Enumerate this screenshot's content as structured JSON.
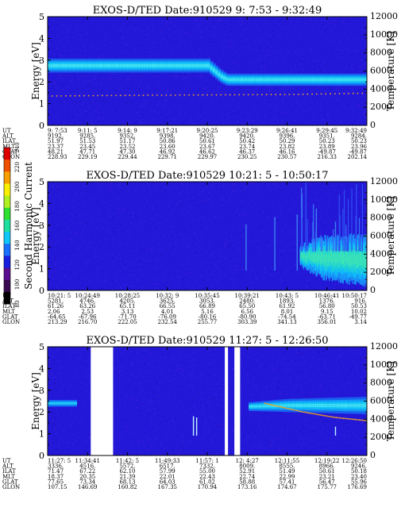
{
  "panels": [
    {
      "title": "EXOS-D/TED   Date:910529  9: 7:53 - 9:32:49",
      "ylabel_left": "Energy [eV]",
      "ylabel_right": "Temperature [K]",
      "y_ticks": [
        "0",
        "1",
        "2",
        "3",
        "4",
        "5"
      ],
      "t_ticks": [
        "0",
        "2000",
        "4000",
        "6000",
        "8000",
        "10000",
        "12000"
      ],
      "row_labels": [
        "UT",
        "ALT",
        "ILAT",
        "MLT",
        "GLAT",
        "GLON"
      ],
      "columns": [
        [
          "9: 7:53",
          "9192.",
          "51.97",
          "23.37",
          "48.21",
          "228.93"
        ],
        [
          "9:11: 5",
          "9285.",
          "51.53",
          "23.45",
          "47.71",
          "229.19"
        ],
        [
          "9:14: 9",
          "9352.",
          "51.17",
          "23.52",
          "47.30",
          "229.44"
        ],
        [
          "9:17:21",
          "9398.",
          "50.86",
          "23.60",
          "46.92",
          "229.71"
        ],
        [
          "9:20:25",
          "9420.",
          "50.61",
          "23.67",
          "46.62",
          "229.97"
        ],
        [
          "9:23:29",
          "9420.",
          "50.42",
          "23.74",
          "46.37",
          "230.25"
        ],
        [
          "9:26:41",
          "9396.",
          "50.29",
          "23.82",
          "46.16",
          "230.57"
        ],
        [
          "9:29:45",
          "9351.",
          "50.23",
          "23.89",
          "-49.87",
          "216.33"
        ],
        [
          "9:32:49",
          "9284.",
          "50.23",
          "23.96",
          "-49.87",
          "202.14"
        ]
      ],
      "chart_data": {
        "type": "heatmap",
        "x": [
          "9: 7:53",
          "9:11: 5",
          "9:14: 9",
          "9:17:21",
          "9:20:25",
          "9:23:29",
          "9:26:41",
          "9:29:45",
          "9:32:49"
        ],
        "ylim": [
          0,
          5
        ],
        "y2lim": [
          0,
          12000
        ],
        "series": [
          {
            "name": "",
            "kind": "band",
            "x": [
              0,
              0.5,
              0.54,
              0.56,
              1
            ],
            "y": [
              2.75,
              2.75,
              2.25,
              2.1,
              2.1
            ],
            "width": [
              0.32,
              0.32,
              0.3,
              0.28,
              0.28
            ]
          },
          {
            "name": "",
            "kind": "dots",
            "x": [
              0,
              0.25,
              0.5,
              0.75,
              1
            ],
            "y": [
              1.35,
              1.38,
              1.4,
              1.42,
              1.48
            ]
          }
        ],
        "gaps": [],
        "streaks": []
      }
    },
    {
      "title": "EXOS-D/TED   Date:910529  10:21: 5 - 10:50:17",
      "ylabel_left": "Energy [eV]",
      "ylabel_right": "Temperature [K]",
      "y_ticks": [
        "0",
        "1",
        "2",
        "3",
        "4",
        "5"
      ],
      "t_ticks": [
        "0",
        "2000",
        "4000",
        "6000",
        "8000",
        "10000",
        "12000"
      ],
      "row_labels": [
        "UT",
        "ALT",
        "ILAT",
        "MLT",
        "GLAT",
        "GLON"
      ],
      "columns": [
        [
          "10:21: 5",
          "5281.",
          "61.26",
          "2.06",
          "-64.65",
          "213.29"
        ],
        [
          "10:24:49",
          "4746.",
          "63.26",
          "2.53",
          "-67.96",
          "216.70"
        ],
        [
          "10:28:25",
          "4205.",
          "65.11",
          "3.13",
          "-71.70",
          "222.05"
        ],
        [
          "10:32: 9",
          "3625.",
          "66.55",
          "4.01",
          "-76.09",
          "232.54"
        ],
        [
          "10:35:45",
          "3053.",
          "66.89",
          "5.16",
          "-80.16",
          "255.77"
        ],
        [
          "10:39:21",
          "2480.",
          "65.50",
          "6.56",
          "-80.90",
          "303.39"
        ],
        [
          "10:43: 5",
          "1893.",
          "61.92",
          "8.01",
          "-74.54",
          "341.13"
        ],
        [
          "10:46:41",
          "1376.",
          "56.80",
          "9.15",
          "-63.71",
          "356.01"
        ],
        [
          "10:50:17",
          "916.",
          "50.53",
          "10.02",
          "-49.77",
          "3.14"
        ]
      ],
      "colorbar": {
        "label": "Second Harmonic Current",
        "ticks": [
          "80",
          "100",
          "120",
          "140",
          "160",
          "180",
          "200",
          "220",
          "240"
        ],
        "colors": [
          "#000000",
          "#3a0a50",
          "#5a1090",
          "#1a20e0",
          "#1a70ff",
          "#10c8f8",
          "#20e0a0",
          "#30e030",
          "#b0f020",
          "#f8f000",
          "#f8a000",
          "#f05000",
          "#e00000"
        ]
      },
      "chart_data": {
        "type": "heatmap",
        "x": [
          "10:21: 5",
          "10:24:49",
          "10:28:25",
          "10:32: 9",
          "10:35:45",
          "10:39:21",
          "10:43: 5",
          "10:46:41",
          "10:50:17"
        ],
        "ylim": [
          0,
          5
        ],
        "y2lim": [
          0,
          12000
        ],
        "series": [
          {
            "name": "",
            "kind": "blob",
            "x": [
              0.79,
              0.86,
              1
            ],
            "y": [
              1.6,
              1.5,
              1.4
            ],
            "width": [
              0.4,
              0.9,
              1.1
            ]
          }
        ],
        "gaps": [],
        "streaks": [
          0.62,
          0.71,
          0.78,
          0.84,
          0.9,
          0.95
        ]
      }
    },
    {
      "title": "EXOS-D/TED   Date:910529  11:27: 5 - 12:26:50",
      "ylabel_left": "Energy [eV]",
      "ylabel_right": "Temperature [K]",
      "y_ticks": [
        "0",
        "1",
        "2",
        "3",
        "4",
        "5"
      ],
      "t_ticks": [
        "0",
        "2000",
        "4000",
        "6000",
        "8000",
        "10000",
        "12000"
      ],
      "row_labels": [
        "UT",
        "ALT",
        "ILAT",
        "MLT",
        "GLAT",
        "GLON"
      ],
      "columns": [
        [
          "11:27: 5",
          "3336.",
          "71.47",
          "18.37",
          "77.65",
          "107.15"
        ],
        [
          "11:34:41",
          "4516.",
          "67.22",
          "20.35",
          "73.34",
          "146.69"
        ],
        [
          "11:42: 5",
          "5572.",
          "62.10",
          "21.39",
          "68.13",
          "160.82"
        ],
        [
          "11:49:33",
          "6517.",
          "57.99",
          "22.01",
          "64.03",
          "167.35"
        ],
        [
          "11:57: 1",
          "7332.",
          "55.00",
          "22.43",
          "61.02",
          "170.94"
        ],
        [
          "12: 4:27",
          "8009.",
          "52.91",
          "22.74",
          "58.88",
          "173.16"
        ],
        [
          "12:11:55",
          "8555.",
          "51.49",
          "22.99",
          "57.41",
          "174.67"
        ],
        [
          "12:19:22",
          "8966.",
          "50.61",
          "23.21",
          "56.47",
          "175.77"
        ],
        [
          "12:26:50",
          "9246.",
          "50.18",
          "23.40",
          "55.96",
          "176.69"
        ]
      ],
      "chart_data": {
        "type": "heatmap",
        "x": [
          "11:27: 5",
          "11:34:41",
          "11:42: 5",
          "11:49:33",
          "11:57: 1",
          "12: 4:27",
          "12:11:55",
          "12:19:22",
          "12:26:50"
        ],
        "ylim": [
          0,
          5
        ],
        "y2lim": [
          0,
          12000
        ],
        "series": [
          {
            "name": "",
            "kind": "band",
            "x": [
              0,
              0.09
            ],
            "y": [
              2.4,
              2.4
            ],
            "width": [
              0.15,
              0.15
            ]
          },
          {
            "name": "",
            "kind": "band",
            "x": [
              0.63,
              0.75,
              1
            ],
            "y": [
              2.25,
              2.3,
              2.3
            ],
            "width": [
              0.2,
              0.3,
              0.4
            ]
          },
          {
            "name": "",
            "kind": "dots",
            "x": [
              0.68,
              0.8,
              0.9,
              1
            ],
            "y": [
              2.4,
              2.0,
              1.75,
              1.6
            ]
          }
        ],
        "gaps": [
          [
            0.135,
            0.205
          ],
          [
            0.555,
            0.565
          ],
          [
            0.585,
            0.603
          ]
        ],
        "streaks": [
          0.455,
          0.465,
          0.9
        ]
      }
    }
  ]
}
